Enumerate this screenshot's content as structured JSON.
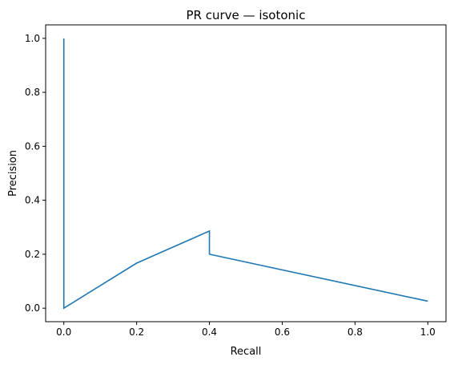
{
  "chart_data": {
    "type": "line",
    "title": "PR curve — isotonic",
    "xlabel": "Recall",
    "ylabel": "Precision",
    "xlim": [
      -0.05,
      1.05
    ],
    "ylim": [
      -0.05,
      1.05
    ],
    "xticks": [
      "0.0",
      "0.2",
      "0.4",
      "0.6",
      "0.8",
      "1.0"
    ],
    "yticks": [
      "0.0",
      "0.2",
      "0.4",
      "0.6",
      "0.8",
      "1.0"
    ],
    "grid": false,
    "series": [
      {
        "color": "#1f77b4",
        "x": [
          0.0,
          0.0,
          0.2,
          0.4,
          0.4,
          1.0
        ],
        "y": [
          1.0,
          0.0,
          0.167,
          0.286,
          0.2,
          0.026
        ]
      }
    ]
  }
}
